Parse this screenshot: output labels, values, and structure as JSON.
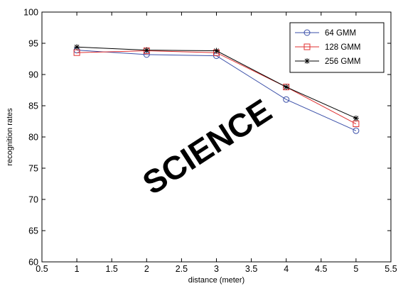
{
  "chart_data": {
    "type": "line",
    "title": "",
    "xlabel": "distance (meter)",
    "ylabel": "recognition rates",
    "xlim": [
      0.5,
      5.5
    ],
    "ylim": [
      60,
      100
    ],
    "xticks": [
      0.5,
      1,
      1.5,
      2,
      2.5,
      3,
      3.5,
      4,
      4.5,
      5,
      5.5
    ],
    "xtick_labels": [
      "0.5",
      "1",
      "1.5",
      "2",
      "2.5",
      "3",
      "3.5",
      "4",
      "4.5",
      "5",
      "5.5"
    ],
    "yticks": [
      60,
      65,
      70,
      75,
      80,
      85,
      90,
      95,
      100
    ],
    "ytick_labels": [
      "60",
      "65",
      "70",
      "75",
      "80",
      "85",
      "90",
      "95",
      "100"
    ],
    "grid": false,
    "legend_position": "top-right",
    "x": [
      1,
      2,
      3,
      4,
      5
    ],
    "series": [
      {
        "name": "64 GMM",
        "values": [
          93.9,
          93.2,
          93.0,
          86.0,
          81.0
        ],
        "color": "#3a4fa8",
        "marker": "circle"
      },
      {
        "name": "128 GMM",
        "values": [
          93.5,
          93.8,
          93.5,
          88.0,
          82.1
        ],
        "color": "#e03030",
        "marker": "square"
      },
      {
        "name": "256 GMM",
        "values": [
          94.4,
          93.9,
          93.8,
          88.0,
          83.0
        ],
        "color": "#000000",
        "marker": "star"
      }
    ]
  },
  "watermark": {
    "text": "SCIENCE",
    "color": "#e9e9e9"
  }
}
